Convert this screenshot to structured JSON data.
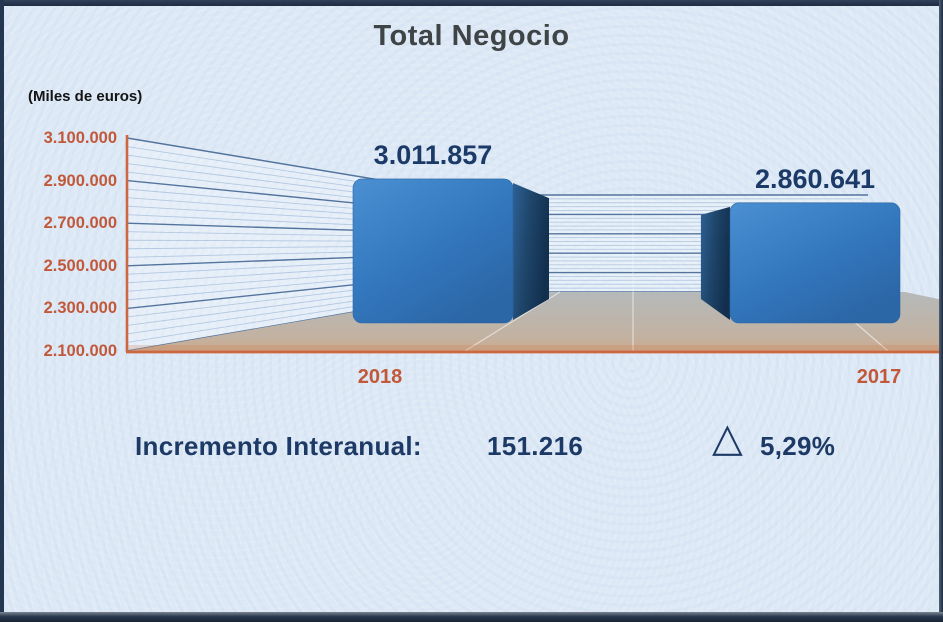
{
  "title": "Total Negocio",
  "unit_label": "(Miles de euros)",
  "chart_data": {
    "type": "bar",
    "projection": "3d-perspective",
    "title": "Total Negocio",
    "ylabel": "(Miles de euros)",
    "categories": [
      "2018",
      "2017"
    ],
    "values": [
      3011857,
      2860641
    ],
    "value_labels": [
      "3.011.857",
      "2.860.641"
    ],
    "ylim": [
      2100000,
      3100000
    ],
    "ytick_step": 200000,
    "yticks": [
      "3.100.000",
      "2.900.000",
      "2.700.000",
      "2.500.000",
      "2.300.000",
      "2.100.000"
    ],
    "grid": true,
    "legend": false,
    "bar_color": "#3377bd",
    "annotation": {
      "label": "Incremento Interanual:",
      "value": 151216,
      "value_label": "151.216",
      "percent_label": "5,29%",
      "direction": "up"
    }
  },
  "summary": {
    "label": "Incremento Interanual:",
    "value": "151.216",
    "delta_icon": "△",
    "percent": "5,29%"
  },
  "colors": {
    "background": "#dce8f5",
    "frame_navy": "#243650",
    "title_gray": "#3f4447",
    "axis_orange": "#cd6742",
    "tick_orange": "#c2583a",
    "navy_text": "#1d3a66",
    "bar_front": "#3377bd",
    "bar_side": "#1c4166",
    "grid_major": "#3a5f8e",
    "grid_minor": "#8aaacf",
    "floor_gray": "#bcbfbf"
  }
}
